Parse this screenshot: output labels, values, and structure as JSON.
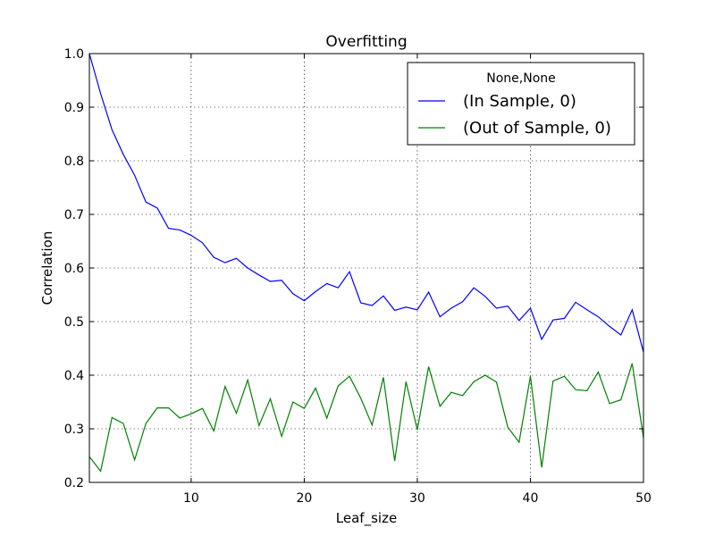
{
  "chart_data": {
    "type": "line",
    "title": "Overfitting",
    "xlabel": "Leaf_size",
    "ylabel": "Correlation",
    "xlim": [
      1,
      50
    ],
    "ylim": [
      0.2,
      1.0
    ],
    "xticks": [
      10,
      20,
      30,
      40,
      50
    ],
    "yticks": [
      0.2,
      0.3,
      0.4,
      0.5,
      0.6,
      0.7,
      0.8,
      0.9,
      1.0
    ],
    "grid": true,
    "legend": {
      "title": "None,None",
      "position": "top-right"
    },
    "x": [
      1,
      2,
      3,
      4,
      5,
      6,
      7,
      8,
      9,
      10,
      11,
      12,
      13,
      14,
      15,
      16,
      17,
      18,
      19,
      20,
      21,
      22,
      23,
      24,
      25,
      26,
      27,
      28,
      29,
      30,
      31,
      32,
      33,
      34,
      35,
      36,
      37,
      38,
      39,
      40,
      41,
      42,
      43,
      44,
      45,
      46,
      47,
      48,
      49,
      50
    ],
    "series": [
      {
        "name": "(In Sample, 0)",
        "color": "#0000ff",
        "values": [
          1.0,
          0.925,
          0.858,
          0.812,
          0.773,
          0.723,
          0.712,
          0.674,
          0.671,
          0.661,
          0.647,
          0.62,
          0.61,
          0.618,
          0.6,
          0.587,
          0.575,
          0.577,
          0.552,
          0.539,
          0.556,
          0.571,
          0.563,
          0.593,
          0.535,
          0.53,
          0.548,
          0.521,
          0.527,
          0.522,
          0.555,
          0.509,
          0.525,
          0.537,
          0.563,
          0.547,
          0.525,
          0.529,
          0.502,
          0.525,
          0.467,
          0.503,
          0.506,
          0.536,
          0.522,
          0.509,
          0.491,
          0.475,
          0.522,
          0.443
        ]
      },
      {
        "name": "(Out of Sample, 0)",
        "color": "#008000",
        "values": [
          0.248,
          0.221,
          0.321,
          0.31,
          0.242,
          0.31,
          0.339,
          0.339,
          0.32,
          0.328,
          0.338,
          0.296,
          0.379,
          0.329,
          0.391,
          0.306,
          0.356,
          0.286,
          0.35,
          0.338,
          0.376,
          0.32,
          0.38,
          0.398,
          0.357,
          0.307,
          0.396,
          0.24,
          0.388,
          0.298,
          0.416,
          0.342,
          0.368,
          0.362,
          0.388,
          0.4,
          0.387,
          0.303,
          0.275,
          0.398,
          0.228,
          0.389,
          0.398,
          0.373,
          0.371,
          0.406,
          0.347,
          0.354,
          0.422,
          0.283
        ]
      }
    ]
  }
}
